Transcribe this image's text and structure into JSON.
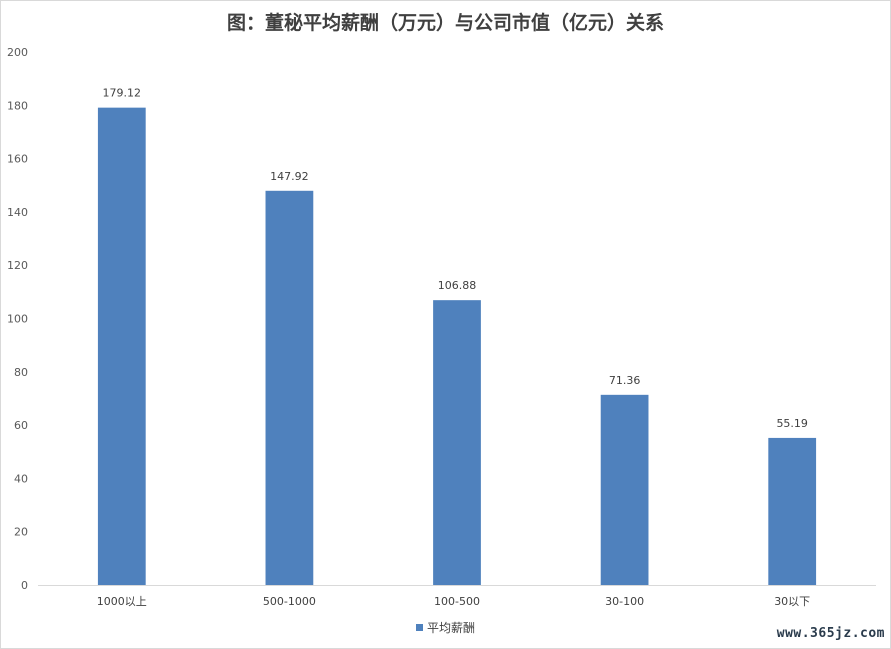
{
  "chart_data": {
    "type": "bar",
    "title": "图：董秘平均薪酬（万元）与公司市值（亿元）关系",
    "categories": [
      "1000以上",
      "500-1000",
      "100-500",
      "30-100",
      "30以下"
    ],
    "series": [
      {
        "name": "平均薪酬",
        "values": [
          179.12,
          147.92,
          106.88,
          71.36,
          55.19
        ],
        "color": "#4f81bd"
      }
    ],
    "data_labels": [
      "179.12",
      "147.92",
      "106.88",
      "71.36",
      "55.19"
    ],
    "y_ticks": [
      0,
      20,
      40,
      60,
      80,
      100,
      120,
      140,
      160,
      180,
      200
    ],
    "ylim": [
      0,
      200
    ],
    "grid": false,
    "legend_position": "bottom"
  },
  "watermark": "www.365jz.com"
}
